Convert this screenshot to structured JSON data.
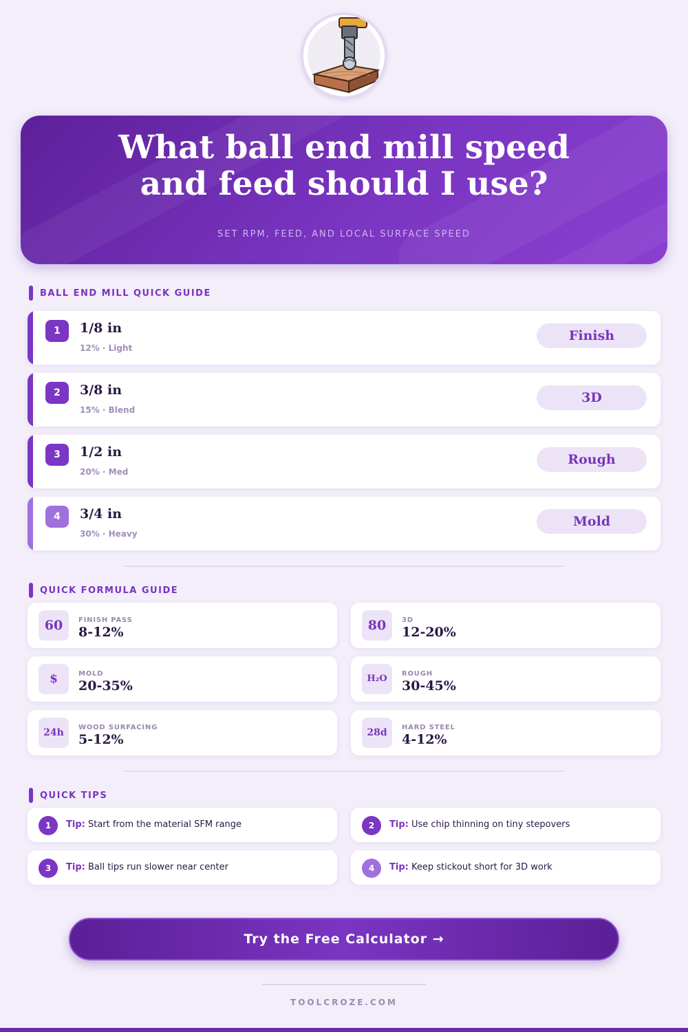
{
  "logo": {
    "icon": "ball-end-mill-on-wood-icon"
  },
  "hero": {
    "title_line1": "What ball end mill speed",
    "title_line2": "and feed should I use?",
    "subtitle": "SET RPM, FEED, AND LOCAL SURFACE SPEED"
  },
  "guide": {
    "heading": "BALL END MILL QUICK GUIDE",
    "items": [
      {
        "num": "1",
        "size": "1/8 in",
        "meta": "12% · Light",
        "tag": "Finish"
      },
      {
        "num": "2",
        "size": "3/8 in",
        "meta": "15% · Blend",
        "tag": "3D"
      },
      {
        "num": "3",
        "size": "1/2 in",
        "meta": "20% · Med",
        "tag": "Rough"
      },
      {
        "num": "4",
        "size": "3/4 in",
        "meta": "30% · Heavy",
        "tag": "Mold"
      }
    ]
  },
  "formula": {
    "heading": "QUICK FORMULA GUIDE",
    "cards": [
      {
        "badge": "60",
        "label": "FINISH PASS",
        "value": "8-12%"
      },
      {
        "badge": "80",
        "label": "3D",
        "value": "12-20%"
      },
      {
        "badge": "$",
        "label": "MOLD",
        "value": "20-35%"
      },
      {
        "badge": "H₂O",
        "label": "ROUGH",
        "value": "30-45%"
      },
      {
        "badge": "24h",
        "label": "WOOD SURFACING",
        "value": "5-12%"
      },
      {
        "badge": "28d",
        "label": "HARD STEEL",
        "value": "4-12%"
      }
    ]
  },
  "tips": {
    "heading": "QUICK TIPS",
    "prefix": "Tip:",
    "items": [
      {
        "num": "1",
        "text": "Start from the material SFM range"
      },
      {
        "num": "2",
        "text": "Use chip thinning on tiny stepovers"
      },
      {
        "num": "3",
        "text": "Ball tips run slower near center"
      },
      {
        "num": "4",
        "text": "Keep stickout short for 3D work"
      }
    ]
  },
  "cta": {
    "label": "Try the Free Calculator →"
  },
  "footer": {
    "site": "TOOLCROZE.COM"
  },
  "colors": {
    "accent": "#7b36c4",
    "accent_dark": "#5d2099",
    "background": "#f3eefa",
    "pill": "#ece4f6"
  }
}
